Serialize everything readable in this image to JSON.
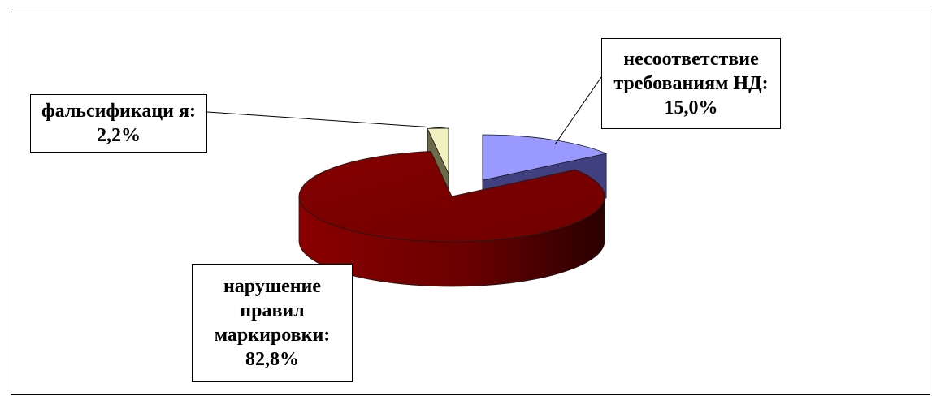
{
  "chart_data": {
    "type": "pie",
    "style": "3d-exploded",
    "slices": [
      {
        "label": "несоответствие требованиям НД: 15,0%",
        "value": 15.0,
        "color": "#9999ff"
      },
      {
        "label": "нарушение правил маркировки: 82,8%",
        "value": 82.8,
        "color": "#800000"
      },
      {
        "label": "фальсификация: 2,2%",
        "value": 2.2,
        "color": "#ffffcc"
      }
    ],
    "legend": "none",
    "data_labels": "outside-with-leader-lines"
  },
  "labels": {
    "nd": "несоответствие требованиям НД: 15,0%",
    "fals": "фальсификаци я: 2,2%",
    "mark": "нарушение правил маркировки: 82,8%"
  }
}
